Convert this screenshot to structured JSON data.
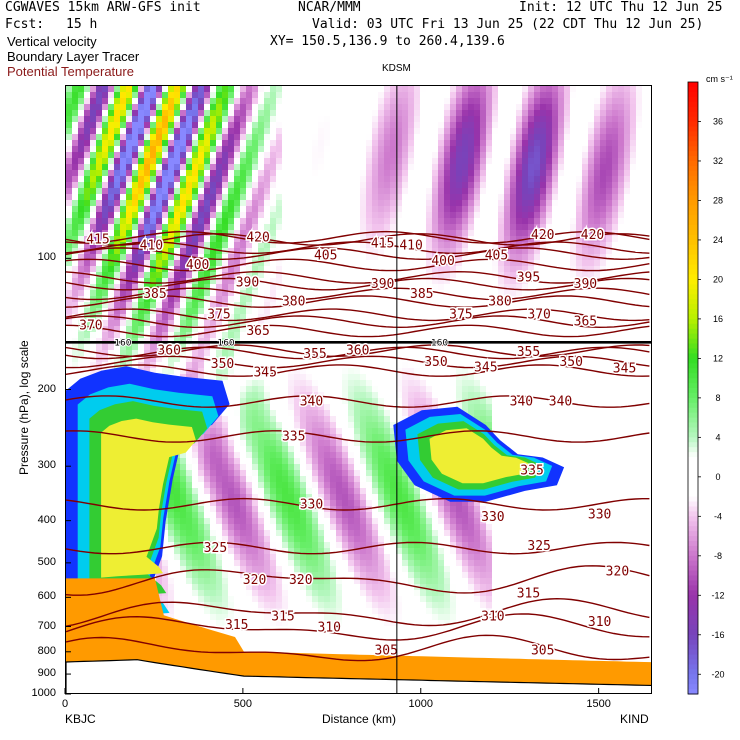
{
  "header": {
    "model": "CGWAVES 15km ARW-GFS init",
    "center": "NCAR/MMM",
    "init": "Init: 12 UTC Thu 12 Jun 25",
    "fcst_label": "Fcst:",
    "fcst_value": "15 h",
    "valid": "Valid: 03 UTC Fri 13 Jun 25 (22 CDT Thu 12 Jun 25)",
    "field1": "Vertical velocity",
    "field2": "Boundary Layer Tracer",
    "field3": "Potential Temperature",
    "xy": "XY= 150.5,136.9 to 260.4,139.6",
    "station_mid": "KDSM"
  },
  "colors": {
    "theta": "#800000",
    "boundary_tracer": "#ff8c00"
  },
  "chart_data": {
    "type": "heatmap",
    "xlabel": "Distance (km)",
    "ylabel": "Pressure (hPa), log scale",
    "xlim": [
      0,
      1650
    ],
    "ylim": [
      1000,
      40
    ],
    "y_scale": "log",
    "x_ticks": [
      "0",
      "500",
      "1000",
      "1500"
    ],
    "x_tick_values": [
      0,
      500,
      1000,
      1500
    ],
    "y_ticks": [
      "100",
      "200",
      "300",
      "400",
      "500",
      "600",
      "700",
      "800",
      "900",
      "1000"
    ],
    "y_tick_values": [
      100,
      200,
      300,
      400,
      500,
      600,
      700,
      800,
      900,
      1000
    ],
    "x_endpoints": {
      "left": "KBJC",
      "right": "KIND"
    },
    "station_mid_x": 930,
    "colorbar": {
      "unit": "cm s⁻¹",
      "tick_labels": [
        "36",
        "32",
        "28",
        "24",
        "20",
        "16",
        "12",
        "8",
        "4",
        "0",
        "-4",
        "-8",
        "-12",
        "-16",
        "-20"
      ],
      "tick_values": [
        36,
        32,
        28,
        24,
        20,
        16,
        12,
        8,
        4,
        0,
        -4,
        -8,
        -12,
        -16,
        -20
      ],
      "range": [
        -22,
        40
      ],
      "stops": [
        {
          "v": 40,
          "color": "#ff0000"
        },
        {
          "v": 36,
          "color": "#ff2a00"
        },
        {
          "v": 32,
          "color": "#ff6a00"
        },
        {
          "v": 28,
          "color": "#ff9a00"
        },
        {
          "v": 24,
          "color": "#ffc000"
        },
        {
          "v": 20,
          "color": "#ffee00"
        },
        {
          "v": 16,
          "color": "#b8f000"
        },
        {
          "v": 12,
          "color": "#33dd22"
        },
        {
          "v": 8,
          "color": "#66ee66"
        },
        {
          "v": 4,
          "color": "#b6f7c0"
        },
        {
          "v": 2,
          "color": "#ffffff"
        },
        {
          "v": -2,
          "color": "#ffffff"
        },
        {
          "v": -4,
          "color": "#f3c6ee"
        },
        {
          "v": -8,
          "color": "#cc77cc"
        },
        {
          "v": -12,
          "color": "#9933aa"
        },
        {
          "v": -16,
          "color": "#7744bb"
        },
        {
          "v": -20,
          "color": "#7777ee"
        },
        {
          "v": -22,
          "color": "#8888ff"
        }
      ]
    },
    "tropopause_p": 155,
    "theta_contours": [
      {
        "label": "415",
        "p": 90
      },
      {
        "label": "420",
        "p": 89
      },
      {
        "label": "410",
        "p": 94
      },
      {
        "label": "405",
        "p": 97
      },
      {
        "label": "400",
        "p": 103
      },
      {
        "label": "395",
        "p": 110
      },
      {
        "label": "390",
        "p": 114
      },
      {
        "label": "385",
        "p": 120
      },
      {
        "label": "380",
        "p": 125
      },
      {
        "label": "375",
        "p": 134
      },
      {
        "label": "370",
        "p": 139
      },
      {
        "label": "365",
        "p": 146
      },
      {
        "label": "360",
        "p": 162
      },
      {
        "label": "355",
        "p": 164
      },
      {
        "label": "350",
        "p": 172
      },
      {
        "label": "345",
        "p": 180
      },
      {
        "label": "340",
        "p": 212
      },
      {
        "label": "335",
        "p": 255
      },
      {
        "label": "330",
        "p": 365
      },
      {
        "label": "325",
        "p": 460
      },
      {
        "label": "320",
        "p": 545
      },
      {
        "label": "315",
        "p": 650
      },
      {
        "label": "310",
        "p": 705
      },
      {
        "label": "305",
        "p": 790
      }
    ],
    "theta_labels": [
      {
        "text": "415",
        "x": 90,
        "p": 90
      },
      {
        "text": "410",
        "x": 240,
        "p": 93
      },
      {
        "text": "420",
        "x": 540,
        "p": 89
      },
      {
        "text": "405",
        "x": 730,
        "p": 98
      },
      {
        "text": "415",
        "x": 890,
        "p": 92
      },
      {
        "text": "410",
        "x": 970,
        "p": 93
      },
      {
        "text": "400",
        "x": 1060,
        "p": 101
      },
      {
        "text": "405",
        "x": 1210,
        "p": 98
      },
      {
        "text": "420",
        "x": 1340,
        "p": 88
      },
      {
        "text": "420",
        "x": 1480,
        "p": 88
      },
      {
        "text": "400",
        "x": 370,
        "p": 103
      },
      {
        "text": "395",
        "x": 1300,
        "p": 110
      },
      {
        "text": "390",
        "x": 510,
        "p": 113
      },
      {
        "text": "390",
        "x": 890,
        "p": 114
      },
      {
        "text": "390",
        "x": 1460,
        "p": 114
      },
      {
        "text": "385",
        "x": 250,
        "p": 120
      },
      {
        "text": "385",
        "x": 1000,
        "p": 120
      },
      {
        "text": "380",
        "x": 640,
        "p": 125
      },
      {
        "text": "380",
        "x": 1220,
        "p": 125
      },
      {
        "text": "375",
        "x": 430,
        "p": 134
      },
      {
        "text": "375",
        "x": 1110,
        "p": 134
      },
      {
        "text": "370",
        "x": 70,
        "p": 142
      },
      {
        "text": "370",
        "x": 1330,
        "p": 134
      },
      {
        "text": "365",
        "x": 540,
        "p": 146
      },
      {
        "text": "365",
        "x": 1460,
        "p": 139
      },
      {
        "text": "360",
        "x": 290,
        "p": 162
      },
      {
        "text": "360",
        "x": 820,
        "p": 162
      },
      {
        "text": "355",
        "x": 700,
        "p": 165
      },
      {
        "text": "355",
        "x": 1300,
        "p": 163
      },
      {
        "text": "350",
        "x": 440,
        "p": 174
      },
      {
        "text": "350",
        "x": 1040,
        "p": 172
      },
      {
        "text": "350",
        "x": 1420,
        "p": 172
      },
      {
        "text": "345",
        "x": 560,
        "p": 182
      },
      {
        "text": "345",
        "x": 1180,
        "p": 177
      },
      {
        "text": "345",
        "x": 1570,
        "p": 178
      },
      {
        "text": "340",
        "x": 690,
        "p": 212
      },
      {
        "text": "340",
        "x": 1280,
        "p": 212
      },
      {
        "text": "340",
        "x": 1390,
        "p": 212
      },
      {
        "text": "335",
        "x": 640,
        "p": 255
      },
      {
        "text": "335",
        "x": 1310,
        "p": 305
      },
      {
        "text": "330",
        "x": 690,
        "p": 365
      },
      {
        "text": "330",
        "x": 1200,
        "p": 390
      },
      {
        "text": "330",
        "x": 1500,
        "p": 385
      },
      {
        "text": "325",
        "x": 420,
        "p": 460
      },
      {
        "text": "325",
        "x": 1330,
        "p": 455
      },
      {
        "text": "320",
        "x": 530,
        "p": 545
      },
      {
        "text": "320",
        "x": 660,
        "p": 545
      },
      {
        "text": "320",
        "x": 1550,
        "p": 520
      },
      {
        "text": "315",
        "x": 480,
        "p": 690
      },
      {
        "text": "315",
        "x": 610,
        "p": 660
      },
      {
        "text": "315",
        "x": 1300,
        "p": 585
      },
      {
        "text": "310",
        "x": 740,
        "p": 700
      },
      {
        "text": "310",
        "x": 1200,
        "p": 660
      },
      {
        "text": "310",
        "x": 1500,
        "p": 680
      },
      {
        "text": "305",
        "x": 900,
        "p": 790
      },
      {
        "text": "305",
        "x": 1340,
        "p": 790
      }
    ],
    "tropopause_labels": [
      {
        "text": "160",
        "x": 160,
        "p": 155
      },
      {
        "text": "160",
        "x": 450,
        "p": 155
      },
      {
        "text": "160",
        "x": 1050,
        "p": 155
      }
    ],
    "boundary_tracer_regions": [
      {
        "name": "west-plume",
        "pts": [
          [
            0,
            200
          ],
          [
            40,
            188
          ],
          [
            100,
            180
          ],
          [
            170,
            176
          ],
          [
            250,
            182
          ],
          [
            330,
            186
          ],
          [
            440,
            190
          ],
          [
            460,
            215
          ],
          [
            410,
            240
          ],
          [
            330,
            250
          ],
          [
            300,
            320
          ],
          [
            280,
            400
          ],
          [
            270,
            480
          ],
          [
            240,
            560
          ],
          [
            220,
            620
          ],
          [
            280,
            680
          ],
          [
            300,
            720
          ],
          [
            200,
            730
          ],
          [
            80,
            740
          ],
          [
            0,
            750
          ]
        ]
      },
      {
        "name": "east-plume",
        "pts": [
          [
            920,
            240
          ],
          [
            1000,
            222
          ],
          [
            1100,
            218
          ],
          [
            1180,
            240
          ],
          [
            1220,
            260
          ],
          [
            1270,
            280
          ],
          [
            1340,
            285
          ],
          [
            1400,
            300
          ],
          [
            1380,
            330
          ],
          [
            1290,
            340
          ],
          [
            1180,
            360
          ],
          [
            1080,
            360
          ],
          [
            980,
            330
          ],
          [
            930,
            290
          ]
        ]
      }
    ]
  }
}
